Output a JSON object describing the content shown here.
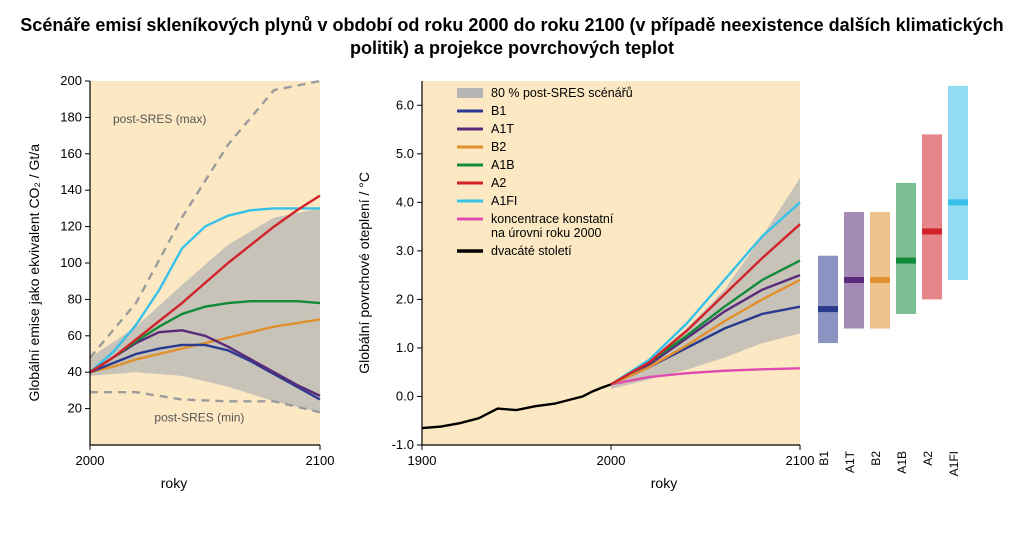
{
  "title": "Scénáře emisí skleníkových plynů v období od roku 2000 do roku 2100 (v případě neexistence dalších klimatických politik) a projekce povrchových teplot",
  "global": {
    "plot_bg": "#fce9c4",
    "axis_color": "#000000",
    "grid_shade": "#b5b5b5"
  },
  "left": {
    "ylabel": "Globální emise jako ekvivalent CO₂  /  Gt/a",
    "xlabel": "roky",
    "xlim": [
      2000,
      2100
    ],
    "ylim": [
      0,
      200
    ],
    "xticks": [
      2000,
      2100
    ],
    "yticks": [
      20,
      40,
      60,
      80,
      100,
      120,
      140,
      160,
      180,
      200
    ],
    "annotation_max": "post-SRES (max)",
    "annotation_min": "post-SRES (min)",
    "shade_top": {
      "x": [
        2000,
        2020,
        2040,
        2060,
        2080,
        2100
      ],
      "y": [
        48,
        65,
        88,
        110,
        125,
        130
      ]
    },
    "shade_bottom": {
      "x": [
        2000,
        2020,
        2040,
        2060,
        2080,
        2100
      ],
      "y": [
        38,
        40,
        38,
        32,
        24,
        18
      ]
    },
    "dashed_max": {
      "color": "#9c9c9c",
      "x": [
        2000,
        2020,
        2040,
        2060,
        2080,
        2100
      ],
      "y": [
        48,
        78,
        125,
        165,
        195,
        200
      ]
    },
    "dashed_min": {
      "color": "#9c9c9c",
      "x": [
        2000,
        2020,
        2040,
        2060,
        2080,
        2100
      ],
      "y": [
        29,
        29,
        25,
        24,
        24,
        18
      ]
    },
    "series": {
      "B1": {
        "color": "#2a3a8f",
        "x": [
          2000,
          2010,
          2020,
          2030,
          2040,
          2050,
          2060,
          2070,
          2080,
          2090,
          2100
        ],
        "y": [
          40,
          45,
          50,
          53,
          55,
          55,
          52,
          46,
          39,
          32,
          25
        ]
      },
      "A1T": {
        "color": "#5a2b7a",
        "x": [
          2000,
          2010,
          2020,
          2030,
          2040,
          2050,
          2060,
          2070,
          2080,
          2090,
          2100
        ],
        "y": [
          40,
          48,
          56,
          62,
          63,
          60,
          54,
          47,
          40,
          33,
          27
        ]
      },
      "B2": {
        "color": "#e2902c",
        "x": [
          2000,
          2010,
          2020,
          2030,
          2040,
          2050,
          2060,
          2070,
          2080,
          2090,
          2100
        ],
        "y": [
          40,
          43,
          47,
          50,
          53,
          56,
          59,
          62,
          65,
          67,
          69
        ]
      },
      "A1B": {
        "color": "#118a3a",
        "x": [
          2000,
          2010,
          2020,
          2030,
          2040,
          2050,
          2060,
          2070,
          2080,
          2090,
          2100
        ],
        "y": [
          40,
          48,
          57,
          65,
          72,
          76,
          78,
          79,
          79,
          79,
          78
        ]
      },
      "A2": {
        "color": "#d2222a",
        "x": [
          2000,
          2010,
          2020,
          2030,
          2040,
          2050,
          2060,
          2070,
          2080,
          2090,
          2100
        ],
        "y": [
          40,
          48,
          58,
          68,
          78,
          89,
          100,
          110,
          120,
          129,
          137
        ]
      },
      "A1FI": {
        "color": "#37c0e8",
        "x": [
          2000,
          2010,
          2020,
          2030,
          2040,
          2050,
          2060,
          2070,
          2080,
          2090,
          2100
        ],
        "y": [
          40,
          51,
          66,
          85,
          108,
          120,
          126,
          129,
          130,
          130,
          130
        ]
      }
    }
  },
  "right": {
    "ylabel": "Globální povrchové oteplení  /  °C",
    "xlabel": "roky",
    "xlim": [
      1900,
      2100
    ],
    "ylim": [
      -1.0,
      6.5
    ],
    "xticks": [
      1900,
      2000,
      2100
    ],
    "yticks": [
      -1.0,
      0,
      1.0,
      2.0,
      3.0,
      4.0,
      5.0,
      6.0
    ],
    "legend": {
      "shade": "80 % post-SRES scénářů",
      "B1": "B1",
      "A1T": "A1T",
      "B2": "B2",
      "A1B": "A1B",
      "A2": "A2",
      "A1FI": "A1FI",
      "const": "koncentrace konstatní na úrovni roku 2000",
      "hist": "dvacáté století"
    },
    "shade_top": {
      "x": [
        2000,
        2020,
        2040,
        2060,
        2080,
        2100
      ],
      "y": [
        0.25,
        0.75,
        1.4,
        2.2,
        3.3,
        4.5
      ]
    },
    "shade_bottom": {
      "x": [
        2000,
        2020,
        2040,
        2060,
        2080,
        2100
      ],
      "y": [
        0.15,
        0.35,
        0.55,
        0.8,
        1.1,
        1.3
      ]
    },
    "hist": {
      "color": "#000000",
      "x": [
        1900,
        1910,
        1920,
        1930,
        1940,
        1950,
        1960,
        1970,
        1980,
        1985,
        1990,
        1995,
        2000
      ],
      "y": [
        -0.65,
        -0.62,
        -0.55,
        -0.45,
        -0.25,
        -0.28,
        -0.2,
        -0.15,
        -0.05,
        0.0,
        0.1,
        0.18,
        0.25
      ]
    },
    "const": {
      "color": "#e04bb0",
      "x": [
        2000,
        2020,
        2040,
        2060,
        2080,
        2100
      ],
      "y": [
        0.25,
        0.4,
        0.48,
        0.53,
        0.56,
        0.58
      ]
    },
    "series": {
      "B1": {
        "color": "#2a3a8f",
        "x": [
          2000,
          2020,
          2040,
          2060,
          2080,
          2100
        ],
        "y": [
          0.25,
          0.6,
          1.0,
          1.4,
          1.7,
          1.85
        ]
      },
      "A1T": {
        "color": "#5a2b7a",
        "x": [
          2000,
          2020,
          2040,
          2060,
          2080,
          2100
        ],
        "y": [
          0.25,
          0.65,
          1.2,
          1.75,
          2.2,
          2.5
        ]
      },
      "B2": {
        "color": "#e2902c",
        "x": [
          2000,
          2020,
          2040,
          2060,
          2080,
          2100
        ],
        "y": [
          0.25,
          0.6,
          1.05,
          1.55,
          2.0,
          2.4
        ]
      },
      "A1B": {
        "color": "#118a3a",
        "x": [
          2000,
          2020,
          2040,
          2060,
          2080,
          2100
        ],
        "y": [
          0.25,
          0.7,
          1.25,
          1.85,
          2.4,
          2.8
        ]
      },
      "A2": {
        "color": "#d2222a",
        "x": [
          2000,
          2020,
          2040,
          2060,
          2080,
          2100
        ],
        "y": [
          0.25,
          0.7,
          1.35,
          2.1,
          2.85,
          3.55
        ]
      },
      "A1FI": {
        "color": "#37c0e8",
        "x": [
          2000,
          2020,
          2040,
          2060,
          2080,
          2100
        ],
        "y": [
          0.25,
          0.75,
          1.5,
          2.4,
          3.3,
          4.0
        ]
      }
    },
    "bars": [
      {
        "id": "B1",
        "label": "B1",
        "color": "#2a3a8f",
        "min": 1.1,
        "max": 2.9,
        "best": 1.8
      },
      {
        "id": "A1T",
        "label": "A1T",
        "color": "#5a2b7a",
        "min": 1.4,
        "max": 3.8,
        "best": 2.4
      },
      {
        "id": "B2",
        "label": "B2",
        "color": "#e2902c",
        "min": 1.4,
        "max": 3.8,
        "best": 2.4
      },
      {
        "id": "A1B",
        "label": "A1B",
        "color": "#118a3a",
        "min": 1.7,
        "max": 4.4,
        "best": 2.8
      },
      {
        "id": "A2",
        "label": "A2",
        "color": "#d2222a",
        "min": 2.0,
        "max": 5.4,
        "best": 3.4
      },
      {
        "id": "A1FI",
        "label": "A1FI",
        "color": "#37c0e8",
        "min": 2.4,
        "max": 6.4,
        "best": 4.0
      }
    ]
  }
}
